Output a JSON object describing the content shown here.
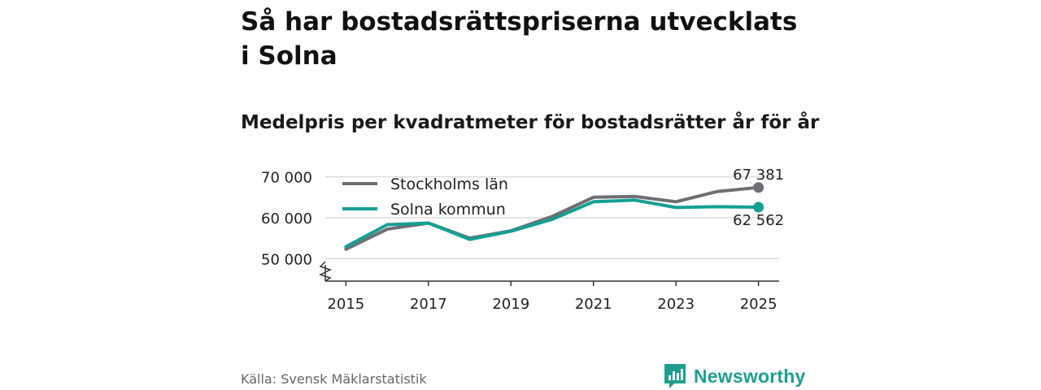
{
  "header": {
    "title": "Så har bostadsrättspriserna utvecklats i Solna",
    "subtitle": "Medelpris per kvadratmeter för bostadsrätter år för år"
  },
  "footer": {
    "source": "Källa: Svensk Mäklarstatistik",
    "brand": "Newsworthy"
  },
  "colors": {
    "stockholm": "#6e6e73",
    "solna": "#14a093",
    "grid": "#dcdcdc",
    "axis": "#333333"
  },
  "chart_data": {
    "type": "line",
    "title": "Medelpris per kvadratmeter för bostadsrätter år för år",
    "xlabel": "",
    "ylabel": "",
    "x": [
      2015,
      2016,
      2017,
      2018,
      2019,
      2020,
      2021,
      2022,
      2023,
      2024,
      2025
    ],
    "xticks": [
      "2015",
      "2017",
      "2019",
      "2021",
      "2023",
      "2025"
    ],
    "yticks": [
      50000,
      60000,
      70000
    ],
    "ytick_labels": [
      "50 000",
      "60 000",
      "70 000"
    ],
    "xlim": [
      2014.5,
      2025.5
    ],
    "ylim": [
      44500,
      72500
    ],
    "axis_break": true,
    "grid": true,
    "legend_position": "top-left",
    "series": [
      {
        "name": "Stockholms län",
        "color_key": "stockholm",
        "values": [
          52300,
          57200,
          58700,
          55000,
          56800,
          60300,
          65000,
          65200,
          63900,
          66400,
          67381
        ],
        "end_label": "67 381"
      },
      {
        "name": "Solna kommun",
        "color_key": "solna",
        "values": [
          52900,
          58300,
          58700,
          54700,
          56700,
          59600,
          63900,
          64300,
          62500,
          62700,
          62562
        ],
        "end_label": "62 562"
      }
    ]
  }
}
